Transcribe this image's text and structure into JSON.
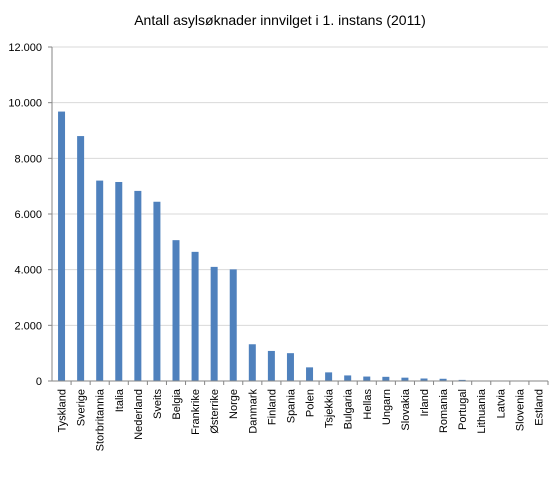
{
  "chart_data": {
    "type": "bar",
    "title": "Antall asylsøknader innvilget i 1. instans (2011)",
    "categories": [
      "Tyskland",
      "Sverige",
      "Storbritannia",
      "Italia",
      "Nederland",
      "Sveits",
      "Belgia",
      "Frankrike",
      "Østerrike",
      "Norge",
      "Danmark",
      "Finland",
      "Spania",
      "Polen",
      "Tsjekkia",
      "Bulgaria",
      "Hellas",
      "Ungarn",
      "Slovakia",
      "Irland",
      "Romania",
      "Portugal",
      "Lithuania",
      "Latvia",
      "Slovenia",
      "Estland"
    ],
    "values": [
      9680,
      8800,
      7200,
      7150,
      6830,
      6440,
      5060,
      4640,
      4100,
      4010,
      1320,
      1080,
      1000,
      490,
      310,
      200,
      160,
      150,
      120,
      90,
      80,
      40,
      10,
      5,
      5,
      5
    ],
    "ytick_labels": [
      "0",
      "2.000",
      "4.000",
      "6.000",
      "8.000",
      "10.000",
      "12.000"
    ],
    "ylim": [
      0,
      12000
    ],
    "xlabel": "",
    "ylabel": "",
    "grid": true,
    "legend": false,
    "bar_color": "#4f81bd",
    "grid_color": "#d9d9d9",
    "axis_color": "#868686"
  }
}
